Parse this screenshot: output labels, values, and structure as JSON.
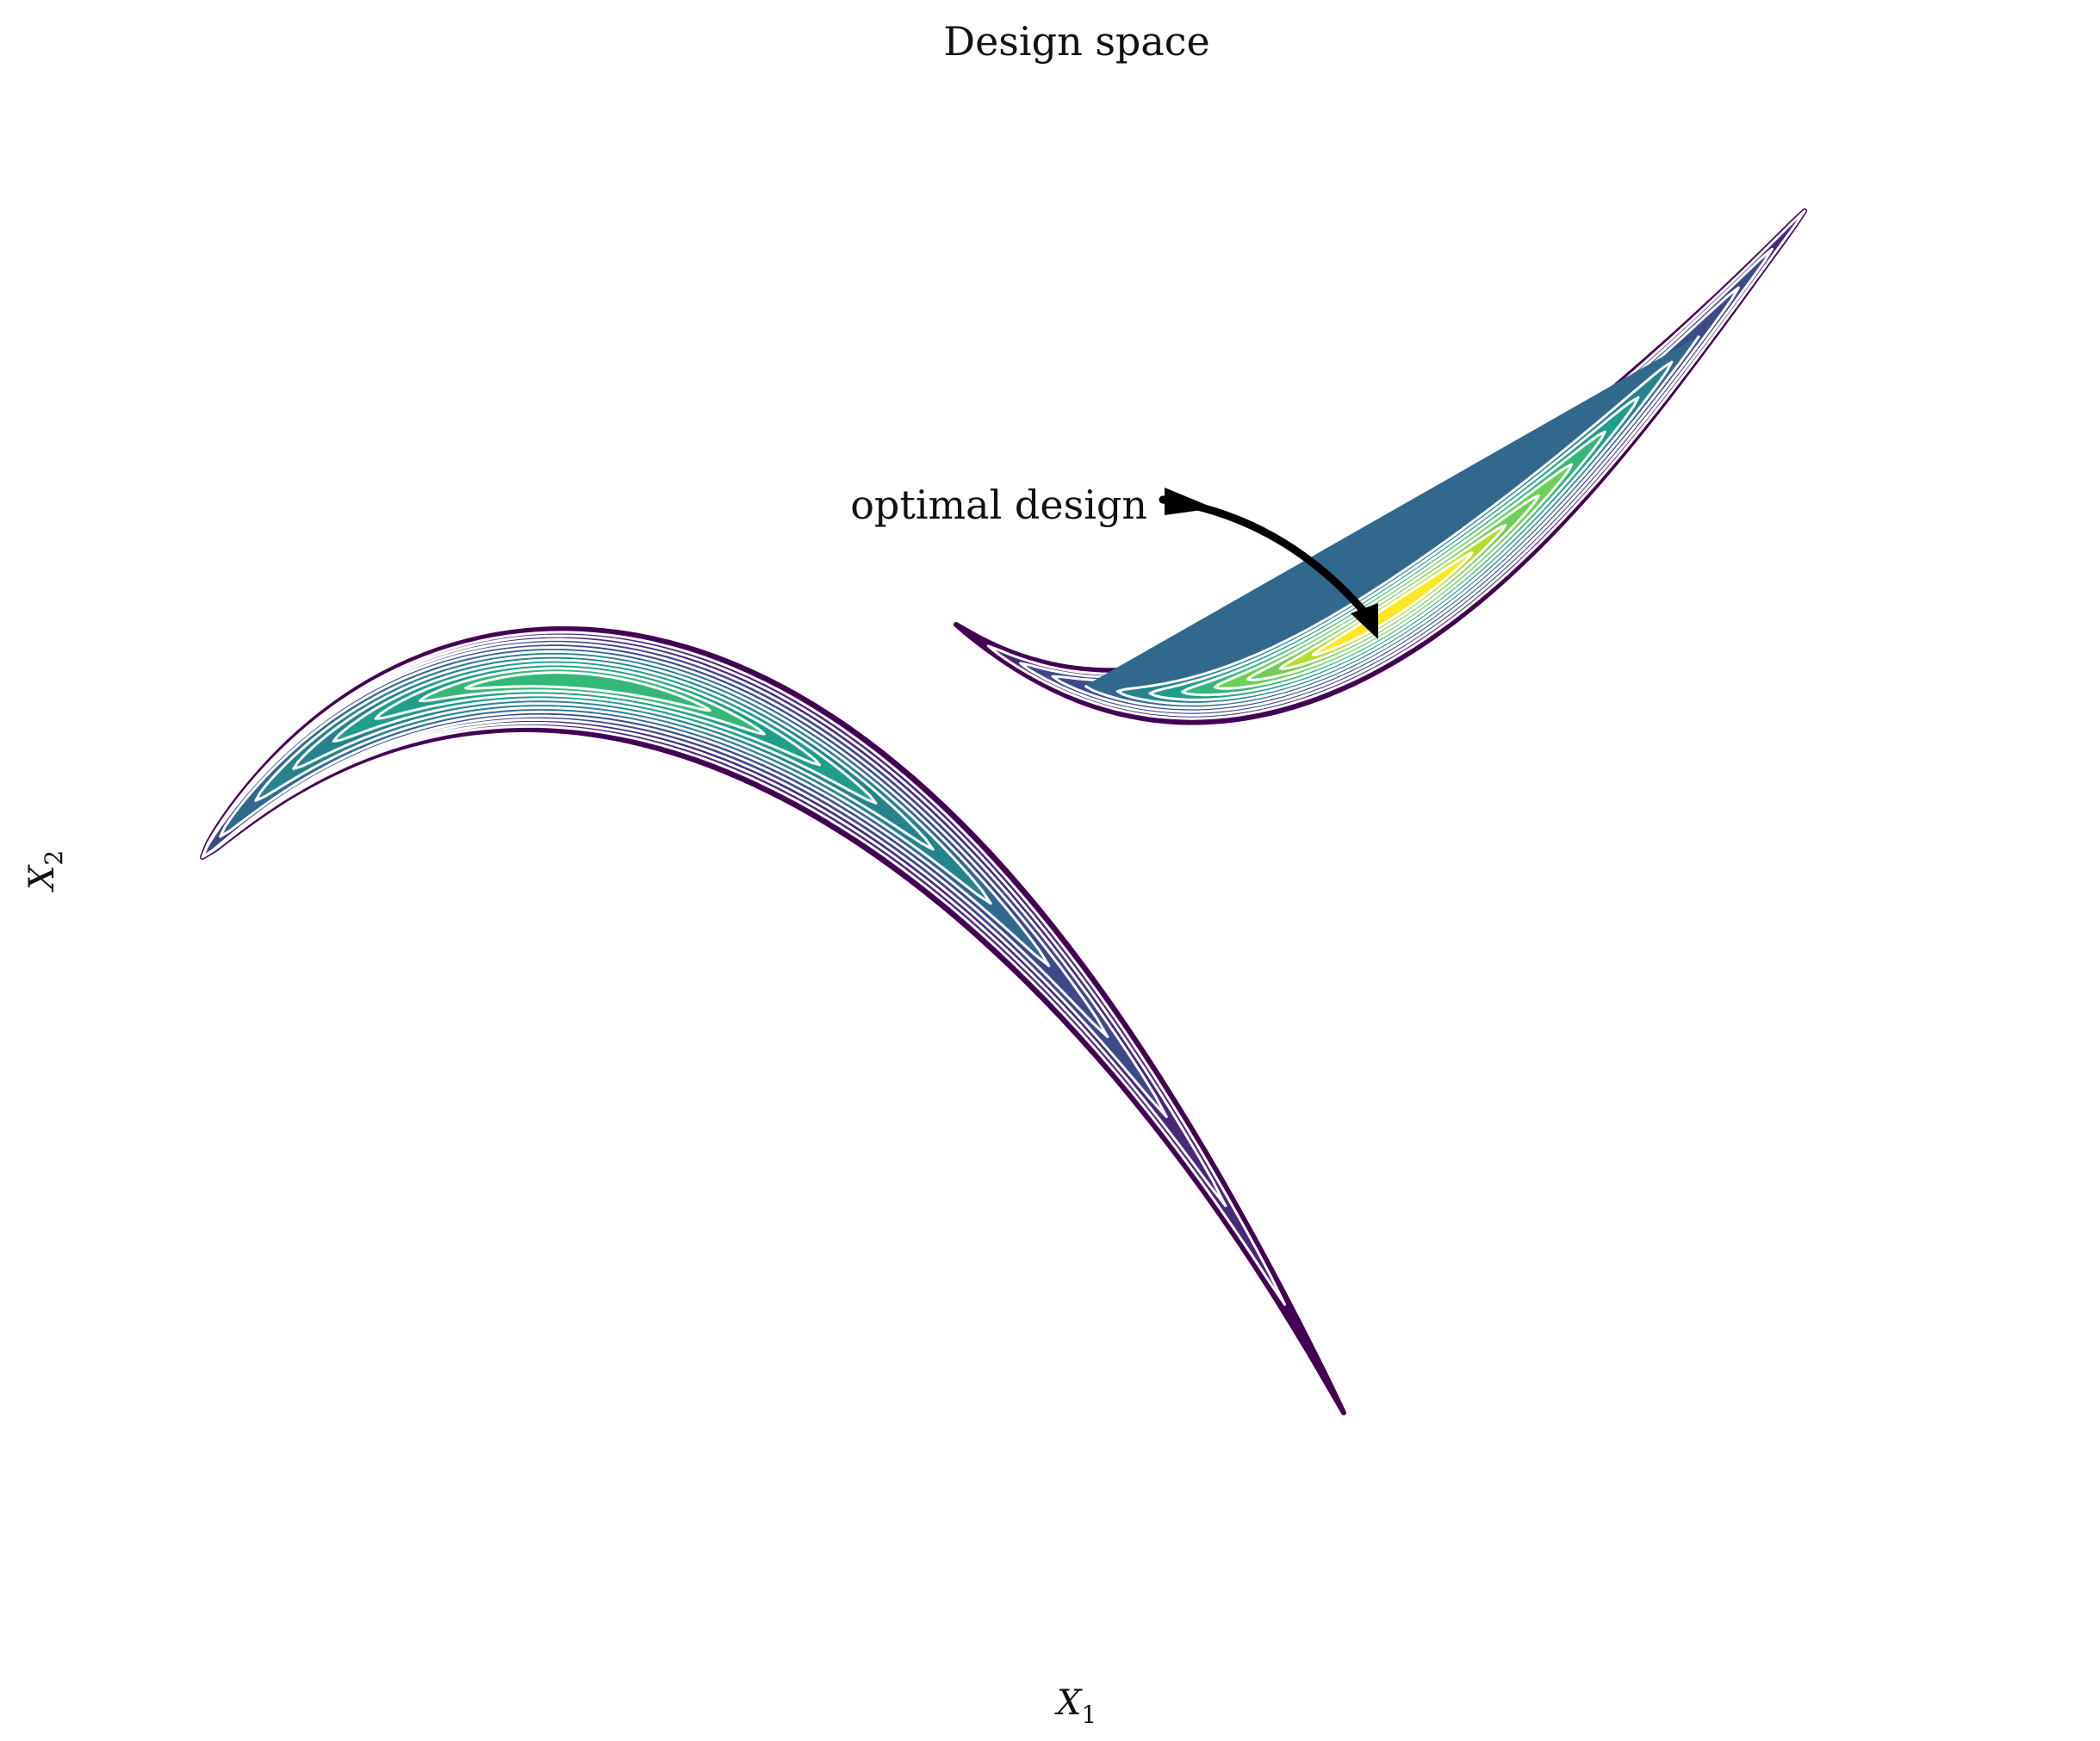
{
  "chart_data": {
    "type": "contour",
    "title": "Design space",
    "xlabel": "X",
    "xlabel_subscript": "1",
    "ylabel": "X",
    "ylabel_subscript": "2",
    "colormap": "viridis",
    "axes_visible": false,
    "grid": false,
    "contour_levels": 12,
    "regions": [
      {
        "name": "lower-left crescent",
        "peak_density": 0.72,
        "shape": "arc opening downward, running from far left to lower center"
      },
      {
        "name": "upper-right crescent",
        "peak_density": 1.0,
        "shape": "arc opening upward, running from center to upper right"
      }
    ],
    "annotation": {
      "text": "optimal design",
      "target_region": "upper-right crescent",
      "arrow": "curved black arrow pointing to the density maximum"
    }
  },
  "colors": {
    "viridis": [
      "#440154",
      "#482878",
      "#3e4989",
      "#31688e",
      "#26828e",
      "#1f9e89",
      "#35b779",
      "#6ece58",
      "#b5de2b",
      "#fde725"
    ],
    "separator": "#ffffff",
    "text": "#111111",
    "arrow": "#000000"
  }
}
